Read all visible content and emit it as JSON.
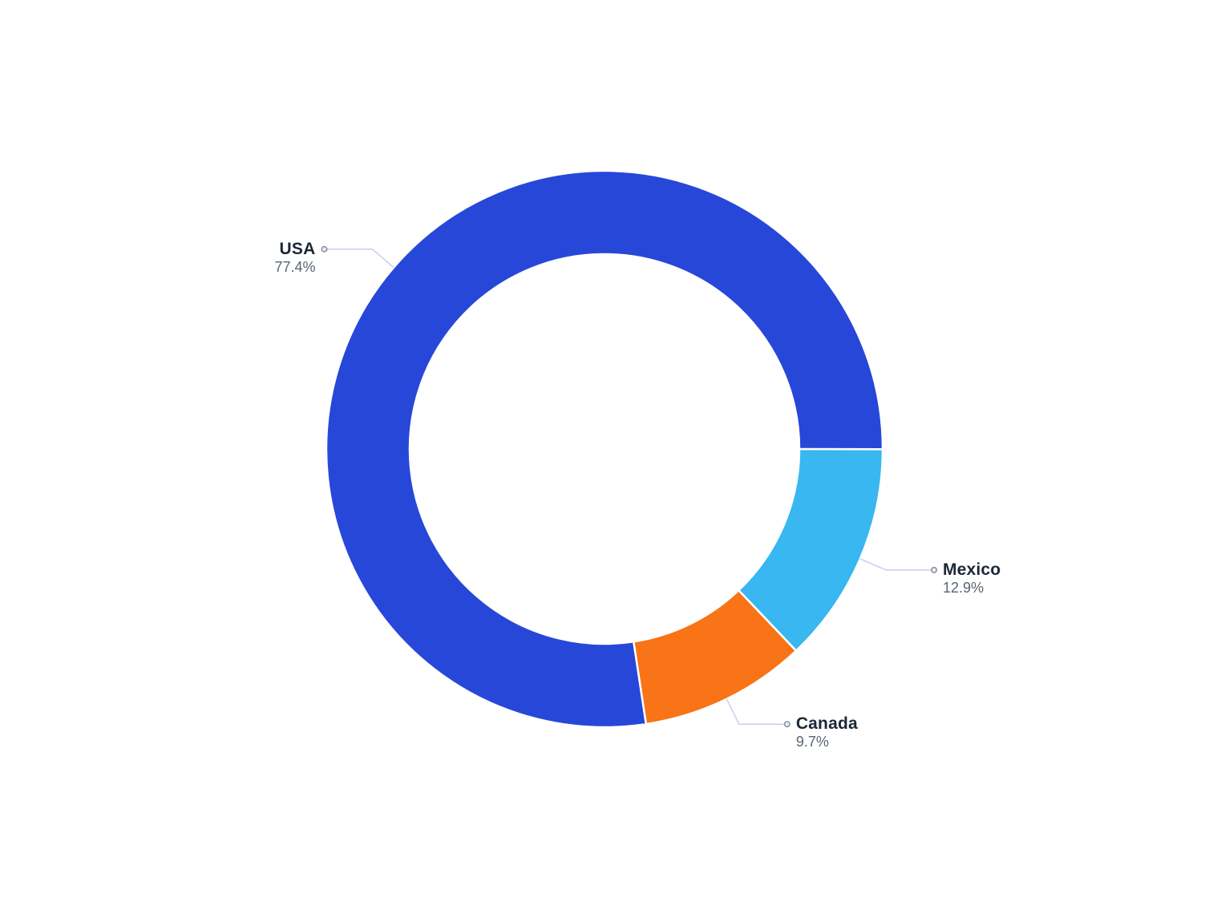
{
  "chart_data": {
    "type": "pie",
    "title": "",
    "donut": true,
    "slices": [
      {
        "label": "USA",
        "value": 77.4,
        "pct_text": "77.4%",
        "color": "#2747d9"
      },
      {
        "label": "Mexico",
        "value": 12.9,
        "pct_text": "12.9%",
        "color": "#38b7f1"
      },
      {
        "label": "Canada",
        "value": 9.7,
        "pct_text": "9.7%",
        "color": "#f87416"
      }
    ],
    "layout": {
      "start_angle_deg": 171.4,
      "direction": "clockwise",
      "inner_radius_ratio": 0.7,
      "legend": "none",
      "labels": "outside-with-leader-lines",
      "background": "#ffffff"
    }
  },
  "styles": {
    "label_color": "#1c2736",
    "pct_color": "#5a6473",
    "leader_line_color": "#c9cfee",
    "marker_fill": "#edeff8",
    "marker_stroke": "#8b93a3",
    "slice_gap_color": "#ffffff"
  }
}
